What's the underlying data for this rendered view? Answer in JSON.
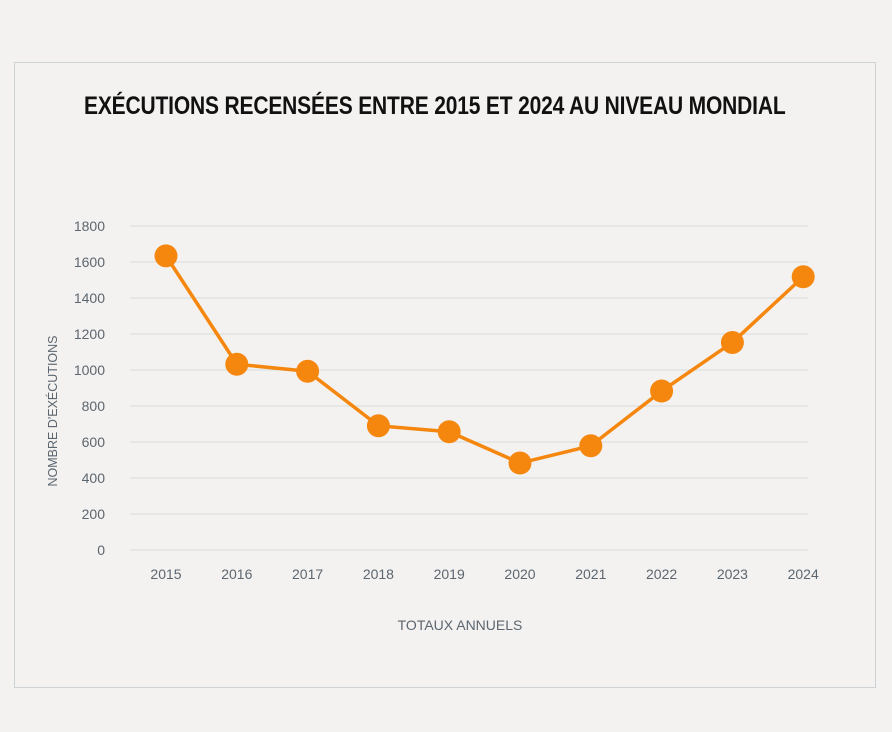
{
  "chart_data": {
    "type": "line",
    "title": "EXÉCUTIONS RECENSÉES ENTRE 2015 ET 2024 AU NIVEAU MONDIAL",
    "xlabel": "TOTAUX ANNUELS",
    "ylabel": "NOMBRE D'EXÉCUTIONS",
    "categories": [
      "2015",
      "2016",
      "2017",
      "2018",
      "2019",
      "2020",
      "2021",
      "2022",
      "2023",
      "2024"
    ],
    "series": [
      {
        "name": "Exécutions",
        "values": [
          1634,
          1032,
          993,
          690,
          657,
          483,
          579,
          883,
          1153,
          1518
        ]
      }
    ],
    "ylim": [
      0,
      1800
    ],
    "yticks": [
      "0",
      "200",
      "400",
      "600",
      "800",
      "1000",
      "1200",
      "1400",
      "1600",
      "1800"
    ],
    "grid": true,
    "colors": {
      "line": "#f5870f",
      "marker": "#f5870f",
      "grid": "#d5dcdc"
    }
  }
}
